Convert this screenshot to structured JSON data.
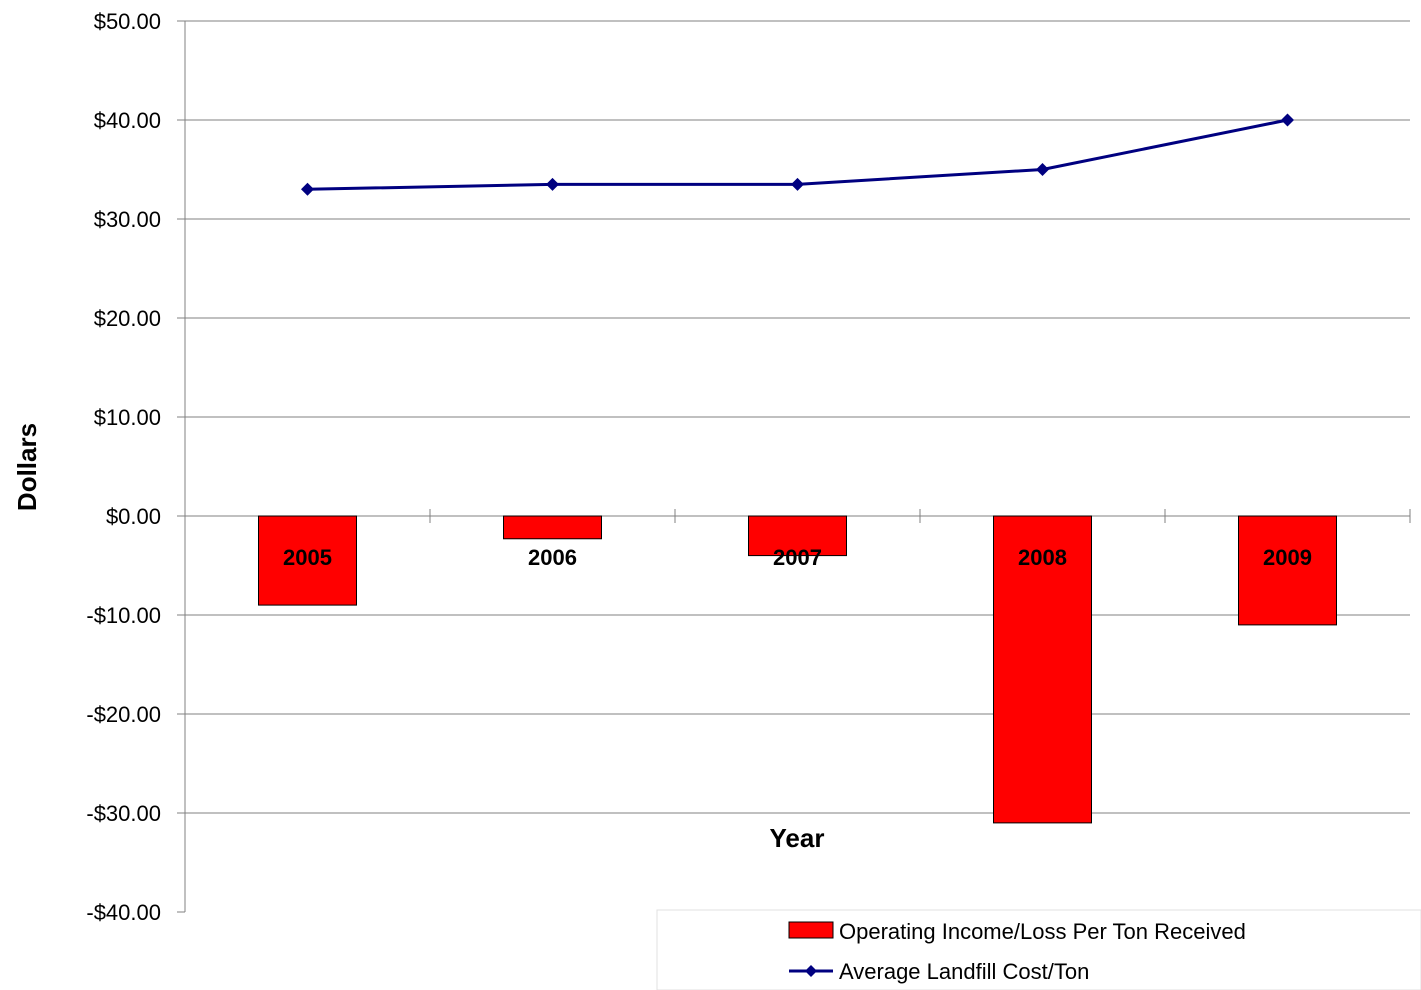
{
  "chart_data": {
    "type": "bar",
    "categories": [
      "2005",
      "2006",
      "2007",
      "2008",
      "2009"
    ],
    "series": [
      {
        "name": "Operating Income/Loss Per Ton Received",
        "kind": "bar",
        "color": "#ff0000",
        "values": [
          -9.0,
          -2.3,
          -4.0,
          -31.0,
          -11.0
        ]
      },
      {
        "name": "Average Landfill Cost/Ton",
        "kind": "line",
        "color": "#000080",
        "marker": "diamond",
        "values": [
          33.0,
          33.5,
          33.5,
          35.0,
          40.0
        ]
      }
    ],
    "xlabel": "Year",
    "ylabel": "Dollars",
    "ylim": [
      -40,
      50
    ],
    "y_ticks": [
      50,
      40,
      30,
      20,
      10,
      0,
      -10,
      -20,
      -30,
      -40
    ],
    "y_tick_labels": [
      "$50.00",
      "$40.00",
      "$30.00",
      "$20.00",
      "$10.00",
      "$0.00",
      "-$10.00",
      "-$20.00",
      "-$30.00",
      "-$40.00"
    ],
    "grid": true,
    "legend_position": "bottom-right",
    "category_labels_inside_bars": true
  }
}
